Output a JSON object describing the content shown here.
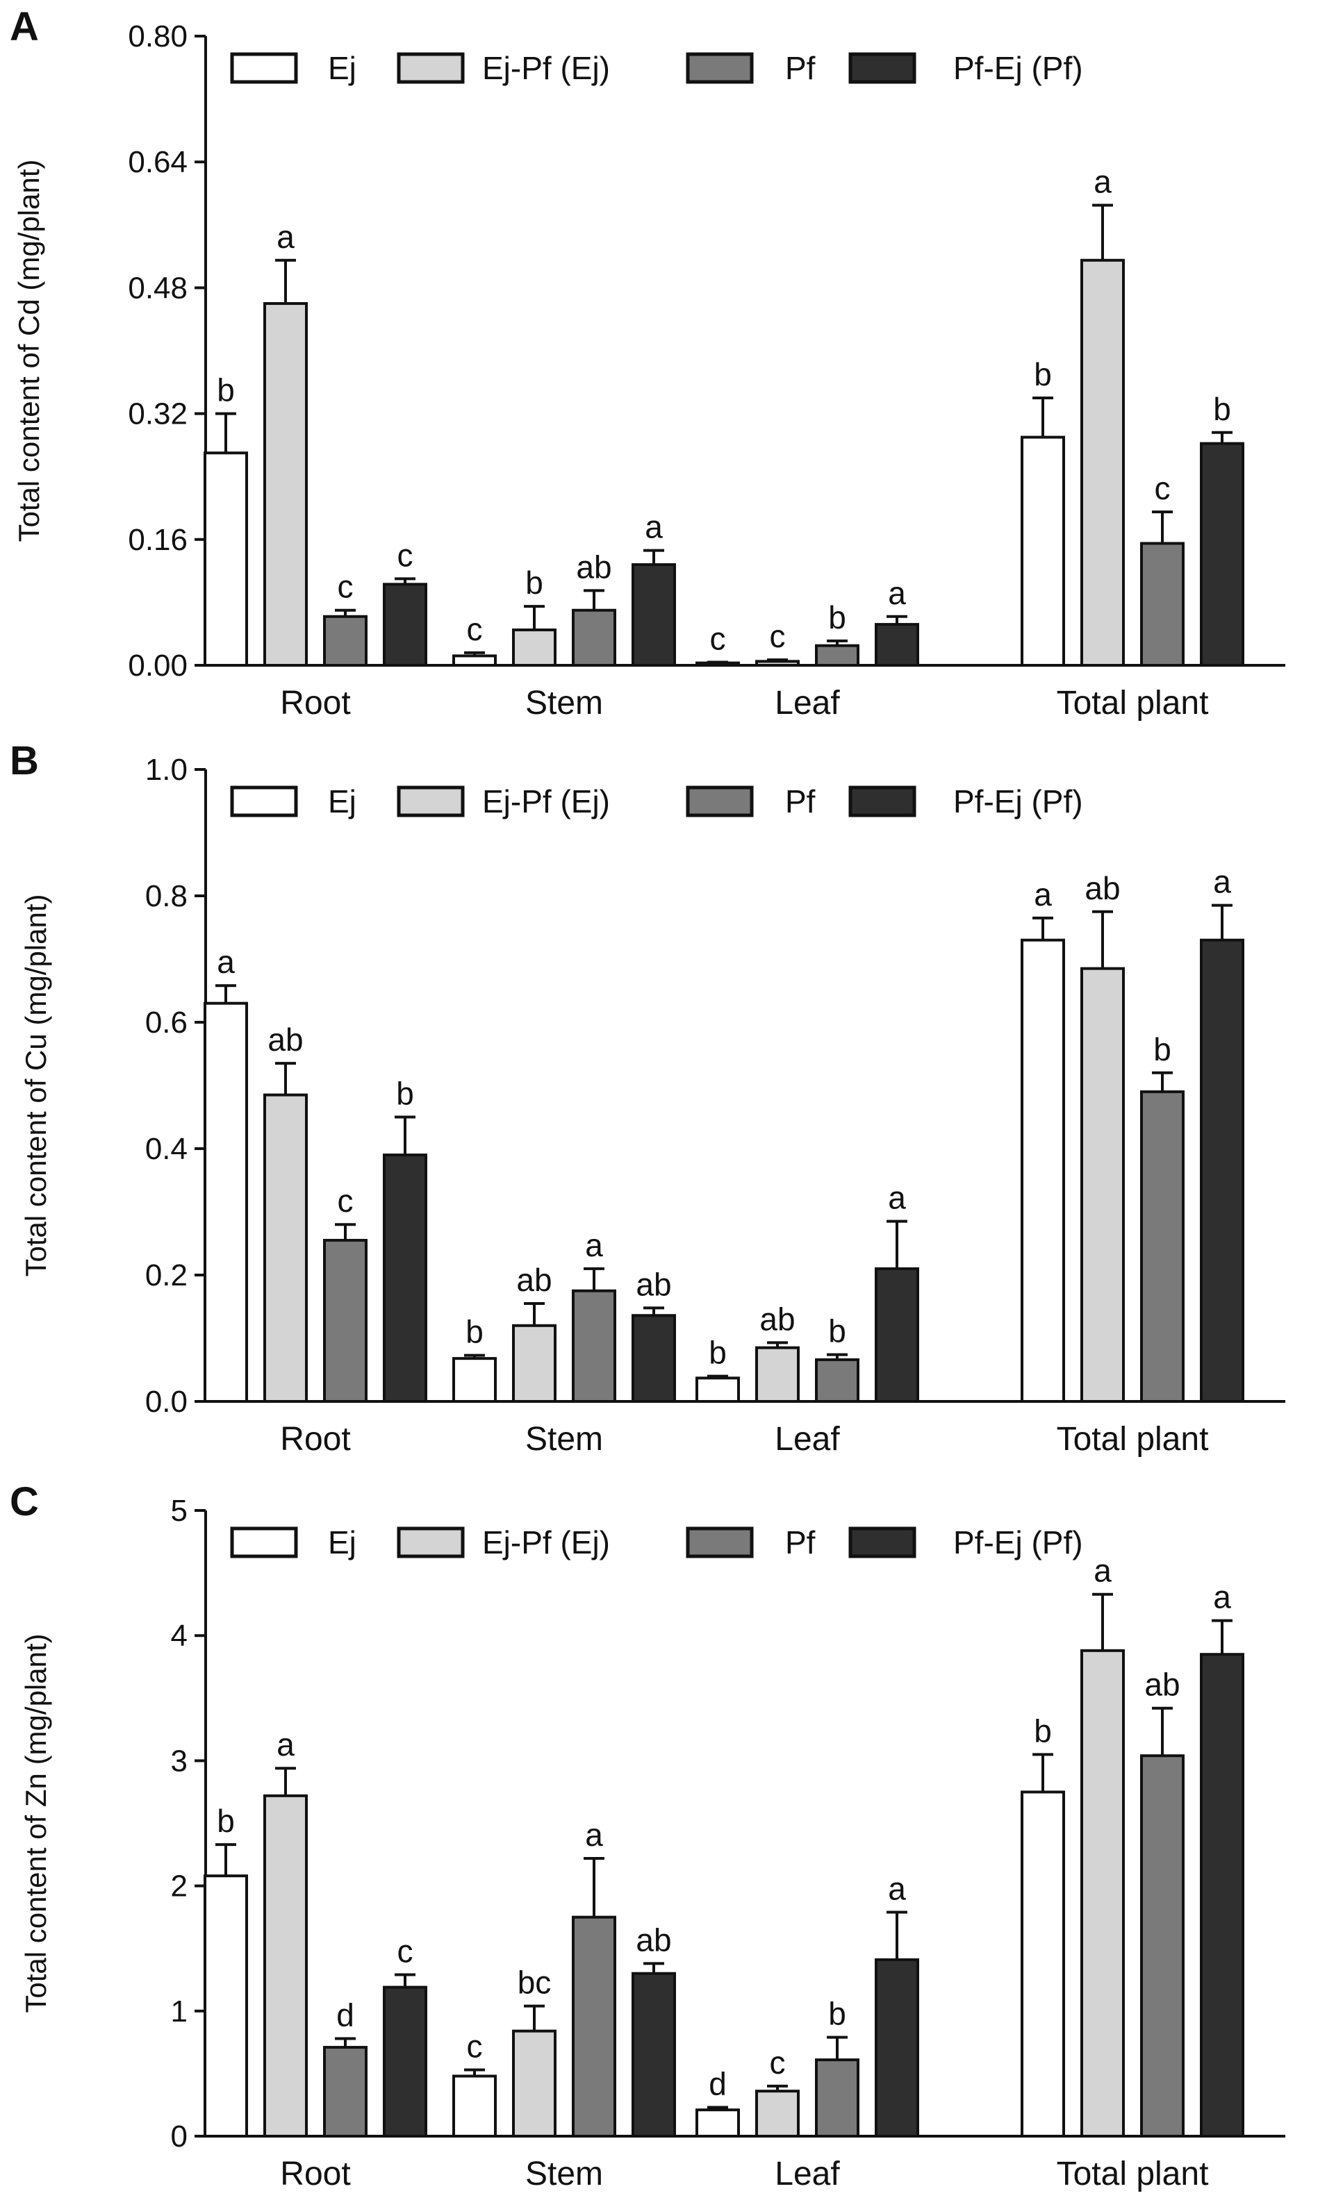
{
  "figure": {
    "legend": [
      "Ej",
      "Ej-Pf (Ej)",
      "Pf",
      "Pf-Ej (Pf)"
    ],
    "series_colors": [
      "#ffffff",
      "#d4d4d4",
      "#7a7a7a",
      "#2f2f2f"
    ],
    "categories": [
      "Root",
      "Stem",
      "Leaf",
      "Total plant"
    ]
  },
  "chart_data": [
    {
      "type": "bar",
      "panel": "A",
      "ylabel": "Total content of Cd  (mg/plant)",
      "ylim": [
        0,
        0.8
      ],
      "yticks": [
        "0.00",
        "0.16",
        "0.32",
        "0.48",
        "0.64",
        "0.80"
      ],
      "categories": [
        "Root",
        "Stem",
        "Leaf",
        "Total plant"
      ],
      "series": [
        {
          "name": "Ej",
          "values": [
            0.27,
            0.012,
            0.003,
            0.29
          ],
          "errors": [
            0.05,
            0.004,
            0.001,
            0.05
          ],
          "sig": [
            "b",
            "c",
            "c",
            "b"
          ]
        },
        {
          "name": "Ej-Pf (Ej)",
          "values": [
            0.46,
            0.045,
            0.005,
            0.515
          ],
          "errors": [
            0.055,
            0.03,
            0.002,
            0.07
          ],
          "sig": [
            "a",
            "b",
            "c",
            "a"
          ]
        },
        {
          "name": "Pf",
          "values": [
            0.062,
            0.07,
            0.025,
            0.155
          ],
          "errors": [
            0.008,
            0.025,
            0.006,
            0.04
          ],
          "sig": [
            "c",
            "ab",
            "b",
            "c"
          ]
        },
        {
          "name": "Pf-Ej (Pf)",
          "values": [
            0.103,
            0.128,
            0.052,
            0.282
          ],
          "errors": [
            0.007,
            0.018,
            0.01,
            0.014
          ],
          "sig": [
            "c",
            "a",
            "a",
            "b"
          ]
        }
      ]
    },
    {
      "type": "bar",
      "panel": "B",
      "ylabel": "Total content of Cu  (mg/plant)",
      "ylim": [
        0,
        1.0
      ],
      "yticks": [
        "0.0",
        "0.2",
        "0.4",
        "0.6",
        "0.8",
        "1.0"
      ],
      "categories": [
        "Root",
        "Stem",
        "Leaf",
        "Total plant"
      ],
      "series": [
        {
          "name": "Ej",
          "values": [
            0.63,
            0.068,
            0.037,
            0.73
          ],
          "errors": [
            0.028,
            0.005,
            0.003,
            0.035
          ],
          "sig": [
            "a",
            "b",
            "b",
            "a"
          ]
        },
        {
          "name": "Ej-Pf (Ej)",
          "values": [
            0.485,
            0.12,
            0.085,
            0.685
          ],
          "errors": [
            0.05,
            0.035,
            0.008,
            0.09
          ],
          "sig": [
            "ab",
            "ab",
            "ab",
            "ab"
          ]
        },
        {
          "name": "Pf",
          "values": [
            0.255,
            0.175,
            0.066,
            0.49
          ],
          "errors": [
            0.025,
            0.035,
            0.008,
            0.03
          ],
          "sig": [
            "c",
            "a",
            "b",
            "b"
          ]
        },
        {
          "name": "Pf-Ej (Pf)",
          "values": [
            0.39,
            0.136,
            0.21,
            0.73
          ],
          "errors": [
            0.06,
            0.012,
            0.075,
            0.055
          ],
          "sig": [
            "b",
            "ab",
            "a",
            "a"
          ]
        }
      ]
    },
    {
      "type": "bar",
      "panel": "C",
      "ylabel": "Total content of Zn  (mg/plant)",
      "ylim": [
        0,
        5
      ],
      "yticks": [
        "0",
        "1",
        "2",
        "3",
        "4",
        "5"
      ],
      "categories": [
        "Root",
        "Stem",
        "Leaf",
        "Total plant"
      ],
      "series": [
        {
          "name": "Ej",
          "values": [
            2.08,
            0.48,
            0.21,
            2.75
          ],
          "errors": [
            0.25,
            0.05,
            0.02,
            0.3
          ],
          "sig": [
            "b",
            "c",
            "d",
            "b"
          ]
        },
        {
          "name": "Ej-Pf (Ej)",
          "values": [
            2.72,
            0.84,
            0.36,
            3.88
          ],
          "errors": [
            0.22,
            0.2,
            0.04,
            0.45
          ],
          "sig": [
            "a",
            "bc",
            "c",
            "a"
          ]
        },
        {
          "name": "Pf",
          "values": [
            0.71,
            1.75,
            0.61,
            3.04
          ],
          "errors": [
            0.07,
            0.47,
            0.18,
            0.38
          ],
          "sig": [
            "d",
            "a",
            "b",
            "ab"
          ]
        },
        {
          "name": "Pf-Ej (Pf)",
          "values": [
            1.19,
            1.3,
            1.41,
            3.85
          ],
          "errors": [
            0.1,
            0.08,
            0.38,
            0.27
          ],
          "sig": [
            "c",
            "ab",
            "a",
            "a"
          ]
        }
      ]
    }
  ]
}
